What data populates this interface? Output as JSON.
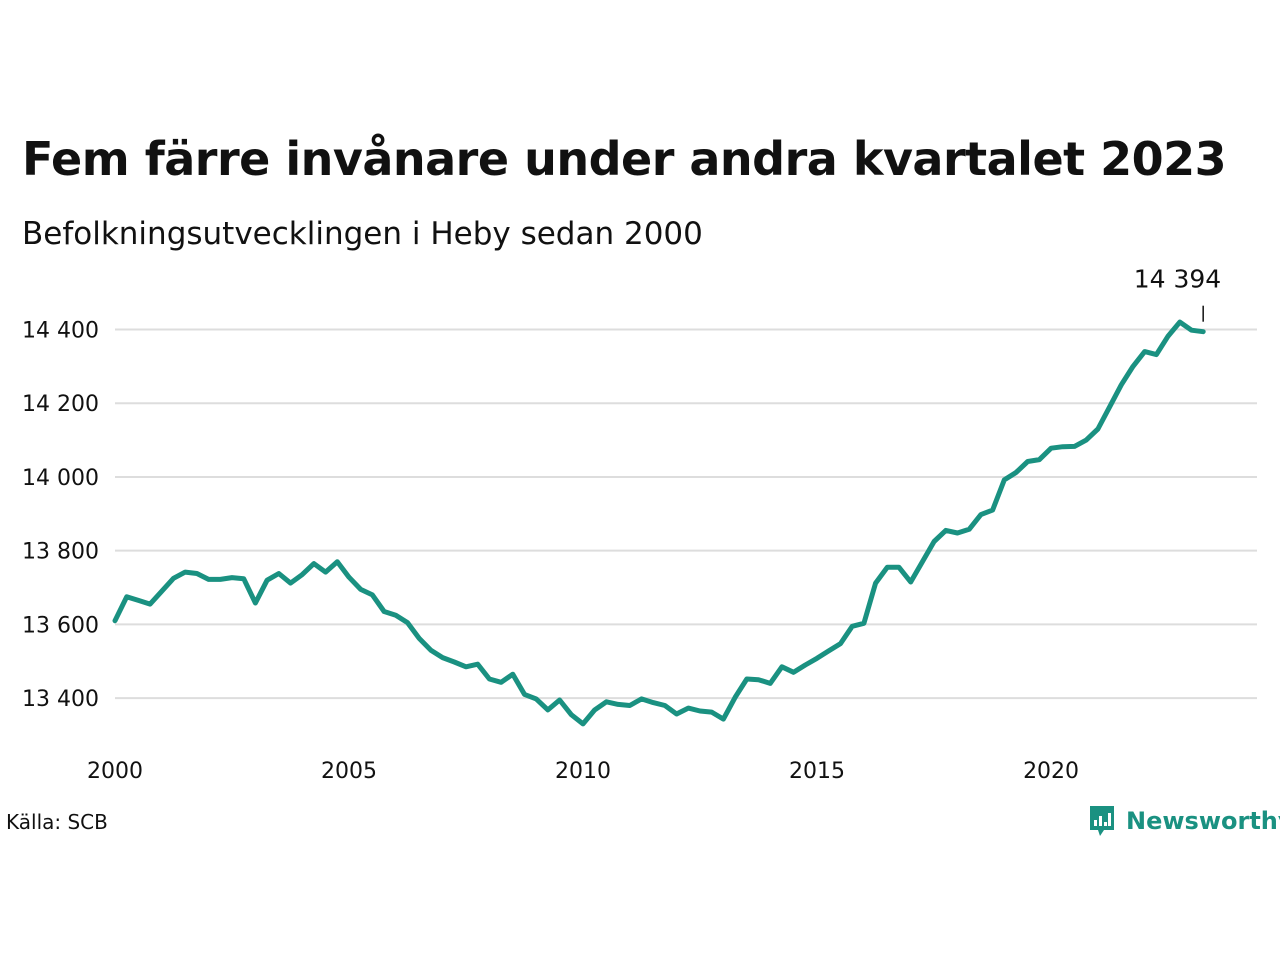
{
  "header": {
    "title": "Fem färre invånare under andra kvartalet 2023",
    "subtitle": "Befolkningsutvecklingen i Heby sedan 2000"
  },
  "footer": {
    "source": "Källa: SCB",
    "brand": "Newsworthy",
    "brand_icon": "newsworthy-logo-icon"
  },
  "colors": {
    "line": "#1a9181",
    "grid": "#dddddd",
    "text": "#111111"
  },
  "chart_data": {
    "type": "line",
    "title": "Fem färre invånare under andra kvartalet 2023",
    "subtitle": "Befolkningsutvecklingen i Heby sedan 2000",
    "xlabel": "",
    "ylabel": "",
    "x_ticks": [
      2000,
      2005,
      2010,
      2015,
      2020
    ],
    "x_tick_labels": [
      "2000",
      "2005",
      "2010",
      "2015",
      "2020"
    ],
    "y_ticks": [
      13400,
      13600,
      13800,
      14000,
      14200,
      14400
    ],
    "y_tick_labels": [
      "13 400",
      "13 600",
      "13 800",
      "14 000",
      "14 200",
      "14 400"
    ],
    "xlim": [
      2000,
      2024.4
    ],
    "ylim": [
      13300,
      14480
    ],
    "grid": true,
    "annotation": {
      "label": "14 394",
      "x": 2023.25,
      "y": 14394
    },
    "series": [
      {
        "x": [
          2000.0,
          2000.25,
          2000.5,
          2000.75,
          2001.0,
          2001.25,
          2001.5,
          2001.75,
          2002.0,
          2002.25,
          2002.5,
          2002.75,
          2003.0,
          2003.25,
          2003.5,
          2003.75,
          2004.0,
          2004.25,
          2004.5,
          2004.75,
          2005.0,
          2005.25,
          2005.5,
          2005.75,
          2006.0,
          2006.25,
          2006.5,
          2006.75,
          2007.0,
          2007.25,
          2007.5,
          2007.75,
          2008.0,
          2008.25,
          2008.5,
          2008.75,
          2009.0,
          2009.25,
          2009.5,
          2009.75,
          2010.0,
          2010.25,
          2010.5,
          2010.75,
          2011.0,
          2011.25,
          2011.5,
          2011.75,
          2012.0,
          2012.25,
          2012.5,
          2012.75,
          2013.0,
          2013.25,
          2013.5,
          2013.75,
          2014.0,
          2014.25,
          2014.5,
          2014.75,
          2015.0,
          2015.25,
          2015.5,
          2015.75,
          2016.0,
          2016.25,
          2016.5,
          2016.75,
          2017.0,
          2017.25,
          2017.5,
          2017.75,
          2018.0,
          2018.25,
          2018.5,
          2018.75,
          2019.0,
          2019.25,
          2019.5,
          2019.75,
          2020.0,
          2020.25,
          2020.5,
          2020.75,
          2021.0,
          2021.25,
          2021.5,
          2021.75,
          2022.0,
          2022.25,
          2022.5,
          2022.75,
          2023.0,
          2023.25
        ],
        "y": [
          13610,
          13675,
          13665,
          13655,
          13690,
          13725,
          13742,
          13738,
          13722,
          13722,
          13727,
          13724,
          13658,
          13720,
          13738,
          13712,
          13735,
          13765,
          13742,
          13770,
          13728,
          13695,
          13680,
          13635,
          13625,
          13605,
          13562,
          13530,
          13510,
          13498,
          13485,
          13492,
          13452,
          13443,
          13465,
          13410,
          13398,
          13368,
          13395,
          13355,
          13330,
          13368,
          13390,
          13383,
          13380,
          13398,
          13388,
          13380,
          13357,
          13373,
          13365,
          13362,
          13343,
          13402,
          13452,
          13450,
          13440,
          13485,
          13470,
          13490,
          13508,
          13528,
          13548,
          13595,
          13603,
          13712,
          13755,
          13755,
          13715,
          13770,
          13825,
          13855,
          13848,
          13858,
          13898,
          13910,
          13992,
          14012,
          14042,
          14047,
          14078,
          14082,
          14083,
          14100,
          14130,
          14190,
          14250,
          14300,
          14340,
          14332,
          14382,
          14420,
          14398,
          14394
        ]
      }
    ]
  }
}
